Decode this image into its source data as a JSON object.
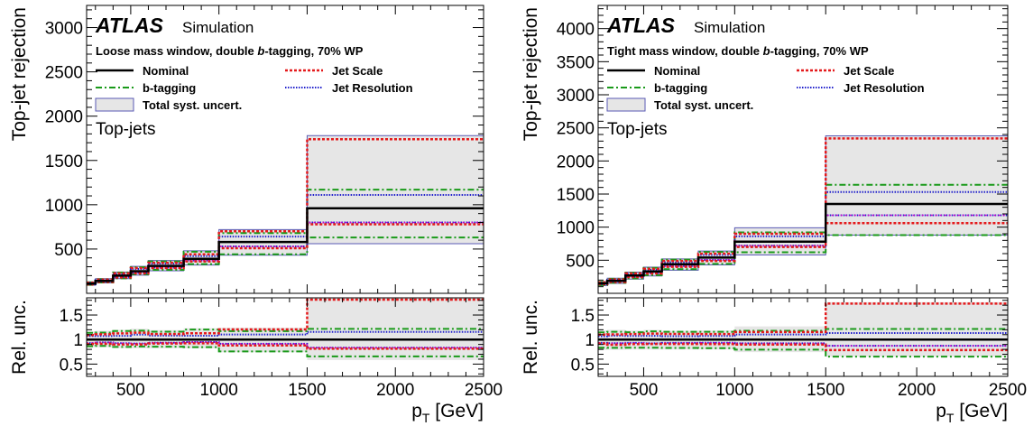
{
  "chart_data": [
    {
      "type": "line",
      "experiment": "ATLAS",
      "experiment_note": "Simulation",
      "selection": "Loose mass window, double ",
      "selection_b": "b",
      "selection_tail": "-tagging, 70% WP",
      "category": "Top-jets",
      "ylabel": "Top-jet rejection",
      "ratio_ylabel": "Rel. unc.",
      "xlabel": "p",
      "xlabel_sub": "T",
      "xlabel_unit": " [GeV]",
      "xlim": [
        250,
        2500
      ],
      "ylim": [
        0,
        3250
      ],
      "ratio_ylim": [
        0.25,
        1.85
      ],
      "xticks": [
        500,
        1000,
        1500,
        2000,
        2500
      ],
      "yticks": [
        500,
        1000,
        1500,
        2000,
        2500,
        3000
      ],
      "ratio_yticks": [
        0.5,
        1,
        1.5
      ],
      "bin_edges": [
        250,
        300,
        400,
        500,
        600,
        800,
        1000,
        1500,
        2500
      ],
      "legend": {
        "nominal": "Nominal",
        "jes": "Jet Scale",
        "btag": "b-tagging",
        "jer": "Jet Resolution",
        "total": "Total syst. uncert."
      },
      "series": {
        "nominal": [
          110,
          140,
          200,
          250,
          310,
          390,
          580,
          960
        ],
        "jes_up": [
          120,
          155,
          225,
          285,
          345,
          440,
          700,
          1740
        ],
        "jes_down": [
          100,
          128,
          180,
          225,
          285,
          360,
          510,
          780
        ],
        "btag_up": [
          125,
          160,
          235,
          295,
          360,
          470,
          680,
          1170
        ],
        "btag_down": [
          95,
          122,
          170,
          215,
          265,
          330,
          440,
          630
        ],
        "jer_up": [
          118,
          150,
          215,
          275,
          335,
          420,
          640,
          1110
        ],
        "jer_down": [
          102,
          132,
          185,
          230,
          290,
          370,
          530,
          800
        ],
        "total_up": [
          128,
          165,
          240,
          305,
          370,
          480,
          720,
          1780
        ],
        "total_down": [
          92,
          118,
          165,
          205,
          255,
          320,
          430,
          560
        ]
      }
    },
    {
      "type": "line",
      "experiment": "ATLAS",
      "experiment_note": "Simulation",
      "selection": "Tight mass window, double ",
      "selection_b": "b",
      "selection_tail": "-tagging, 70% WP",
      "category": "Top-jets",
      "ylabel": "Top-jet rejection",
      "ratio_ylabel": "Rel. unc.",
      "xlabel": "p",
      "xlabel_sub": "T",
      "xlabel_unit": " [GeV]",
      "xlim": [
        250,
        2500
      ],
      "ylim": [
        0,
        4350
      ],
      "ratio_ylim": [
        0.25,
        1.85
      ],
      "xticks": [
        500,
        1000,
        1500,
        2000,
        2500
      ],
      "yticks": [
        500,
        1000,
        1500,
        2000,
        2500,
        3000,
        3500,
        4000
      ],
      "ratio_yticks": [
        0.5,
        1,
        1.5
      ],
      "bin_edges": [
        250,
        300,
        400,
        500,
        600,
        800,
        1000,
        1500,
        2500
      ],
      "legend": {
        "nominal": "Nominal",
        "jes": "Jet Scale",
        "btag": "b-tagging",
        "jer": "Jet Resolution",
        "total": "Total syst. uncert."
      },
      "series": {
        "nominal": [
          150,
          190,
          270,
          330,
          440,
          540,
          780,
          1350
        ],
        "jes_up": [
          165,
          210,
          300,
          370,
          490,
          600,
          900,
          2340
        ],
        "jes_down": [
          138,
          170,
          245,
          300,
          400,
          490,
          700,
          1060
        ],
        "btag_up": [
          172,
          220,
          310,
          385,
          510,
          625,
          920,
          1640
        ],
        "btag_down": [
          125,
          158,
          225,
          275,
          365,
          445,
          620,
          880
        ],
        "jer_up": [
          160,
          205,
          290,
          355,
          470,
          580,
          860,
          1530
        ],
        "jer_down": [
          140,
          176,
          252,
          305,
          410,
          505,
          720,
          1180
        ],
        "total_up": [
          178,
          228,
          320,
          395,
          520,
          640,
          990,
          2380
        ],
        "total_down": [
          118,
          150,
          215,
          262,
          350,
          430,
          580,
          880
        ]
      }
    }
  ],
  "colors": {
    "nominal": "#000000",
    "jes": "#e41a1c",
    "btag": "#1a9a1a",
    "jer": "#2222cc",
    "total_fill": "#e6e6e6",
    "total_edge": "#5a5ab4",
    "magenta": "#cc00cc"
  }
}
